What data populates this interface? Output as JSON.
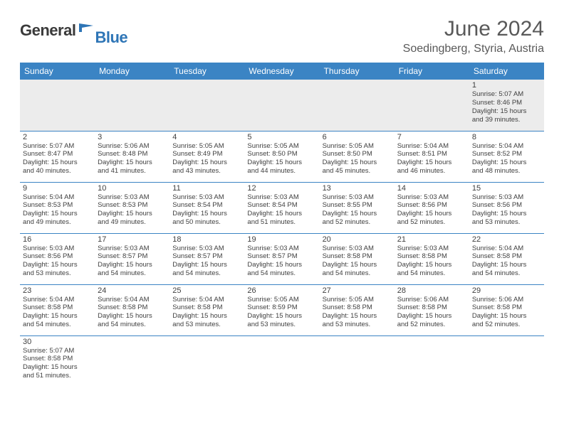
{
  "logo": {
    "dark": "General",
    "blue": "Blue"
  },
  "title": "June 2024",
  "location": "Soedingberg, Styria, Austria",
  "header_bg": "#3b84c4",
  "header_fg": "#ffffff",
  "rule_color": "#3b84c4",
  "empty_bg": "#ececec",
  "text_color": "#404040",
  "title_color": "#595959",
  "weekdays": [
    "Sunday",
    "Monday",
    "Tuesday",
    "Wednesday",
    "Thursday",
    "Friday",
    "Saturday"
  ],
  "weeks": [
    [
      null,
      null,
      null,
      null,
      null,
      null,
      {
        "n": "1",
        "sr": "Sunrise: 5:07 AM",
        "ss": "Sunset: 8:46 PM",
        "d1": "Daylight: 15 hours",
        "d2": "and 39 minutes."
      }
    ],
    [
      {
        "n": "2",
        "sr": "Sunrise: 5:07 AM",
        "ss": "Sunset: 8:47 PM",
        "d1": "Daylight: 15 hours",
        "d2": "and 40 minutes."
      },
      {
        "n": "3",
        "sr": "Sunrise: 5:06 AM",
        "ss": "Sunset: 8:48 PM",
        "d1": "Daylight: 15 hours",
        "d2": "and 41 minutes."
      },
      {
        "n": "4",
        "sr": "Sunrise: 5:05 AM",
        "ss": "Sunset: 8:49 PM",
        "d1": "Daylight: 15 hours",
        "d2": "and 43 minutes."
      },
      {
        "n": "5",
        "sr": "Sunrise: 5:05 AM",
        "ss": "Sunset: 8:50 PM",
        "d1": "Daylight: 15 hours",
        "d2": "and 44 minutes."
      },
      {
        "n": "6",
        "sr": "Sunrise: 5:05 AM",
        "ss": "Sunset: 8:50 PM",
        "d1": "Daylight: 15 hours",
        "d2": "and 45 minutes."
      },
      {
        "n": "7",
        "sr": "Sunrise: 5:04 AM",
        "ss": "Sunset: 8:51 PM",
        "d1": "Daylight: 15 hours",
        "d2": "and 46 minutes."
      },
      {
        "n": "8",
        "sr": "Sunrise: 5:04 AM",
        "ss": "Sunset: 8:52 PM",
        "d1": "Daylight: 15 hours",
        "d2": "and 48 minutes."
      }
    ],
    [
      {
        "n": "9",
        "sr": "Sunrise: 5:04 AM",
        "ss": "Sunset: 8:53 PM",
        "d1": "Daylight: 15 hours",
        "d2": "and 49 minutes."
      },
      {
        "n": "10",
        "sr": "Sunrise: 5:03 AM",
        "ss": "Sunset: 8:53 PM",
        "d1": "Daylight: 15 hours",
        "d2": "and 49 minutes."
      },
      {
        "n": "11",
        "sr": "Sunrise: 5:03 AM",
        "ss": "Sunset: 8:54 PM",
        "d1": "Daylight: 15 hours",
        "d2": "and 50 minutes."
      },
      {
        "n": "12",
        "sr": "Sunrise: 5:03 AM",
        "ss": "Sunset: 8:54 PM",
        "d1": "Daylight: 15 hours",
        "d2": "and 51 minutes."
      },
      {
        "n": "13",
        "sr": "Sunrise: 5:03 AM",
        "ss": "Sunset: 8:55 PM",
        "d1": "Daylight: 15 hours",
        "d2": "and 52 minutes."
      },
      {
        "n": "14",
        "sr": "Sunrise: 5:03 AM",
        "ss": "Sunset: 8:56 PM",
        "d1": "Daylight: 15 hours",
        "d2": "and 52 minutes."
      },
      {
        "n": "15",
        "sr": "Sunrise: 5:03 AM",
        "ss": "Sunset: 8:56 PM",
        "d1": "Daylight: 15 hours",
        "d2": "and 53 minutes."
      }
    ],
    [
      {
        "n": "16",
        "sr": "Sunrise: 5:03 AM",
        "ss": "Sunset: 8:56 PM",
        "d1": "Daylight: 15 hours",
        "d2": "and 53 minutes."
      },
      {
        "n": "17",
        "sr": "Sunrise: 5:03 AM",
        "ss": "Sunset: 8:57 PM",
        "d1": "Daylight: 15 hours",
        "d2": "and 54 minutes."
      },
      {
        "n": "18",
        "sr": "Sunrise: 5:03 AM",
        "ss": "Sunset: 8:57 PM",
        "d1": "Daylight: 15 hours",
        "d2": "and 54 minutes."
      },
      {
        "n": "19",
        "sr": "Sunrise: 5:03 AM",
        "ss": "Sunset: 8:57 PM",
        "d1": "Daylight: 15 hours",
        "d2": "and 54 minutes."
      },
      {
        "n": "20",
        "sr": "Sunrise: 5:03 AM",
        "ss": "Sunset: 8:58 PM",
        "d1": "Daylight: 15 hours",
        "d2": "and 54 minutes."
      },
      {
        "n": "21",
        "sr": "Sunrise: 5:03 AM",
        "ss": "Sunset: 8:58 PM",
        "d1": "Daylight: 15 hours",
        "d2": "and 54 minutes."
      },
      {
        "n": "22",
        "sr": "Sunrise: 5:04 AM",
        "ss": "Sunset: 8:58 PM",
        "d1": "Daylight: 15 hours",
        "d2": "and 54 minutes."
      }
    ],
    [
      {
        "n": "23",
        "sr": "Sunrise: 5:04 AM",
        "ss": "Sunset: 8:58 PM",
        "d1": "Daylight: 15 hours",
        "d2": "and 54 minutes."
      },
      {
        "n": "24",
        "sr": "Sunrise: 5:04 AM",
        "ss": "Sunset: 8:58 PM",
        "d1": "Daylight: 15 hours",
        "d2": "and 54 minutes."
      },
      {
        "n": "25",
        "sr": "Sunrise: 5:04 AM",
        "ss": "Sunset: 8:58 PM",
        "d1": "Daylight: 15 hours",
        "d2": "and 53 minutes."
      },
      {
        "n": "26",
        "sr": "Sunrise: 5:05 AM",
        "ss": "Sunset: 8:59 PM",
        "d1": "Daylight: 15 hours",
        "d2": "and 53 minutes."
      },
      {
        "n": "27",
        "sr": "Sunrise: 5:05 AM",
        "ss": "Sunset: 8:58 PM",
        "d1": "Daylight: 15 hours",
        "d2": "and 53 minutes."
      },
      {
        "n": "28",
        "sr": "Sunrise: 5:06 AM",
        "ss": "Sunset: 8:58 PM",
        "d1": "Daylight: 15 hours",
        "d2": "and 52 minutes."
      },
      {
        "n": "29",
        "sr": "Sunrise: 5:06 AM",
        "ss": "Sunset: 8:58 PM",
        "d1": "Daylight: 15 hours",
        "d2": "and 52 minutes."
      }
    ],
    [
      {
        "n": "30",
        "sr": "Sunrise: 5:07 AM",
        "ss": "Sunset: 8:58 PM",
        "d1": "Daylight: 15 hours",
        "d2": "and 51 minutes."
      },
      null,
      null,
      null,
      null,
      null,
      null
    ]
  ]
}
